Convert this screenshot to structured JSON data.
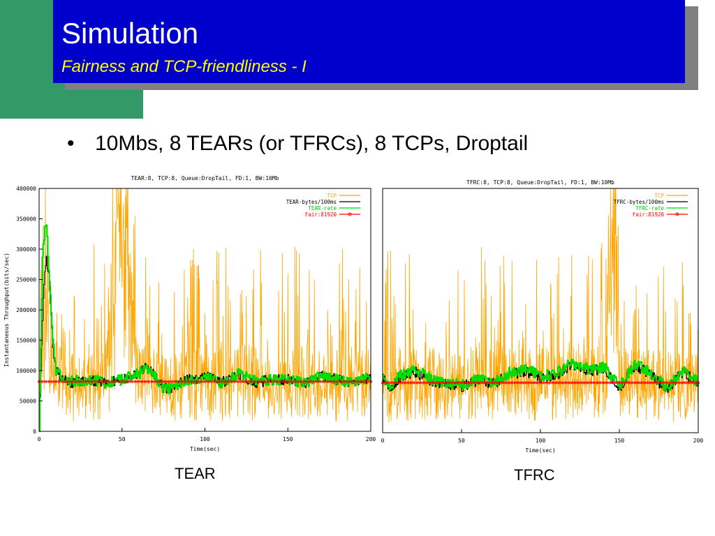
{
  "slide": {
    "title": "Simulation",
    "subtitle": "Fairness and TCP-friendliness - I",
    "bullet": "10Mbs, 8 TEARs (or TFRCs), 8 TCPs, Droptail",
    "colors": {
      "title_bg": "#0000cc",
      "title_text": "#ffffff",
      "subtitle_text": "#ffff00",
      "accent_block": "#339966"
    }
  },
  "captions": {
    "left": "TEAR",
    "right": "TFRC"
  },
  "chart_data": [
    {
      "type": "line",
      "title": "TEAR:8, TCP:8, Queue:DropTail, FD:1, BW:10Mb",
      "xlabel": "Time(sec)",
      "ylabel": "Instantaneous Throughput(bits/sec)",
      "xlim": [
        0,
        200
      ],
      "ylim": [
        0,
        400000
      ],
      "xticks": [
        "0",
        "50",
        "100",
        "150",
        "200"
      ],
      "yticks": [
        "0",
        "50000",
        "100000",
        "150000",
        "200000",
        "250000",
        "300000",
        "350000",
        "400000"
      ],
      "grid": false,
      "legend_position": "top-right",
      "series": [
        {
          "name": "TCP",
          "color": "#ffa500",
          "kind": "noisy",
          "x": [
            0,
            2,
            4,
            6,
            10,
            20,
            30,
            40,
            51,
            60,
            70,
            80,
            90,
            100,
            110,
            120,
            135,
            140,
            150,
            160,
            170,
            180,
            190,
            195,
            200
          ],
          "y": [
            20000,
            120000,
            320000,
            90000,
            95000,
            80000,
            90000,
            85000,
            380000,
            90000,
            85000,
            80000,
            85000,
            90000,
            85000,
            90000,
            90000,
            85000,
            80000,
            90000,
            85000,
            80000,
            90000,
            95000,
            80000
          ]
        },
        {
          "name": "TEAR-bytes/100ms",
          "color": "#000000",
          "kind": "smooth",
          "x": [
            0,
            2,
            4,
            6,
            8,
            10,
            15,
            20,
            30,
            40,
            50,
            60,
            65,
            70,
            75,
            80,
            90,
            100,
            110,
            120,
            130,
            140,
            150,
            160,
            170,
            180,
            190,
            200
          ],
          "y": [
            0,
            200000,
            290000,
            250000,
            140000,
            100000,
            85000,
            80000,
            85000,
            80000,
            85000,
            95000,
            110000,
            90000,
            70000,
            72000,
            85000,
            90000,
            80000,
            95000,
            80000,
            85000,
            85000,
            80000,
            90000,
            85000,
            80000,
            90000
          ]
        },
        {
          "name": "TEAR-rate",
          "color": "#00dd00",
          "kind": "smooth",
          "x": [
            0,
            2,
            4,
            6,
            8,
            10,
            15,
            20,
            30,
            40,
            50,
            60,
            65,
            70,
            75,
            80,
            90,
            100,
            110,
            120,
            130,
            140,
            150,
            160,
            170,
            180,
            190,
            200
          ],
          "y": [
            0,
            300000,
            350000,
            250000,
            150000,
            100000,
            85000,
            82000,
            85000,
            80000,
            85000,
            95000,
            105000,
            88000,
            70000,
            72000,
            85000,
            90000,
            80000,
            95000,
            82000,
            85000,
            85000,
            80000,
            90000,
            85000,
            80000,
            92000
          ]
        },
        {
          "name": "Fair:81920",
          "color": "#ff0000",
          "kind": "constant",
          "x": [
            0,
            200
          ],
          "y": [
            81920,
            81920
          ]
        }
      ]
    },
    {
      "type": "line",
      "title": "TFRC:8, TCP:8, Queue:DropTail, FD:1, BW:10Mb",
      "xlabel": "Time(sec)",
      "ylabel": "",
      "xlim": [
        0,
        200
      ],
      "ylim": [
        0,
        400000
      ],
      "xticks": [
        "0",
        "50",
        "100",
        "150",
        "200"
      ],
      "yticks": [],
      "grid": false,
      "legend_position": "top-right",
      "series": [
        {
          "name": "TCP",
          "color": "#ffa500",
          "kind": "noisy",
          "x": [
            0,
            10,
            20,
            30,
            40,
            50,
            60,
            70,
            80,
            90,
            100,
            110,
            120,
            130,
            140,
            147,
            150,
            160,
            170,
            180,
            190,
            200
          ],
          "y": [
            80000,
            90000,
            85000,
            90000,
            80000,
            85000,
            90000,
            85000,
            90000,
            85000,
            90000,
            85000,
            95000,
            90000,
            95000,
            380000,
            90000,
            85000,
            90000,
            85000,
            80000,
            85000
          ]
        },
        {
          "name": "TFRC-bytes/100ms",
          "color": "#000000",
          "kind": "smooth",
          "x": [
            0,
            5,
            10,
            20,
            30,
            40,
            50,
            60,
            70,
            80,
            90,
            100,
            110,
            120,
            130,
            140,
            150,
            160,
            170,
            180,
            190,
            200
          ],
          "y": [
            90000,
            70000,
            90000,
            100000,
            85000,
            80000,
            75000,
            85000,
            80000,
            95000,
            100000,
            90000,
            95000,
            110000,
            100000,
            105000,
            75000,
            110000,
            95000,
            70000,
            100000,
            80000
          ]
        },
        {
          "name": "TFRC-rate",
          "color": "#00dd00",
          "kind": "smooth",
          "x": [
            0,
            5,
            10,
            20,
            30,
            40,
            50,
            60,
            70,
            80,
            90,
            100,
            110,
            120,
            130,
            140,
            150,
            160,
            170,
            180,
            190,
            200
          ],
          "y": [
            95000,
            72000,
            92000,
            105000,
            88000,
            82000,
            78000,
            88000,
            82000,
            98000,
            105000,
            92000,
            98000,
            115000,
            105000,
            108000,
            78000,
            112000,
            98000,
            72000,
            102000,
            82000
          ]
        },
        {
          "name": "Fair:81920",
          "color": "#ff0000",
          "kind": "constant",
          "x": [
            0,
            200
          ],
          "y": [
            81920,
            81920
          ]
        }
      ]
    }
  ]
}
